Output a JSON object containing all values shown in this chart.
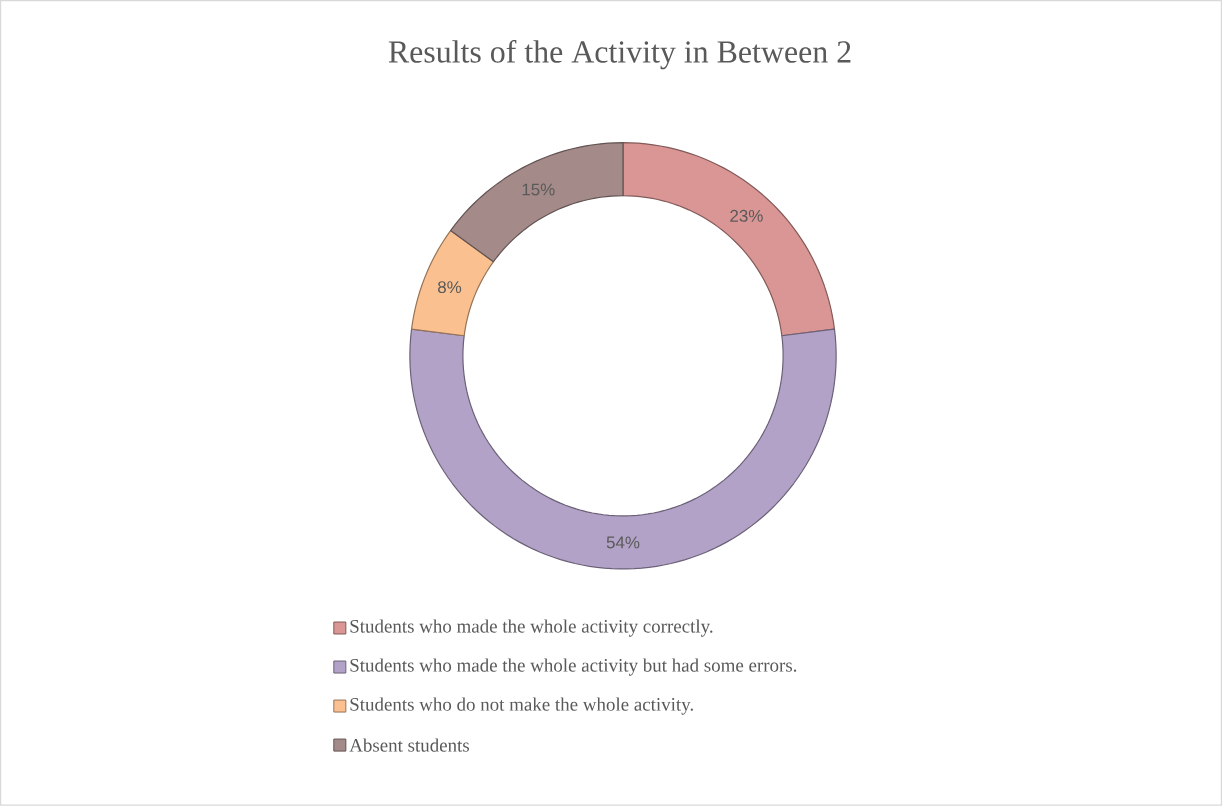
{
  "chart_data": {
    "type": "donut",
    "title": "Results of the Activity in Between 2",
    "categories": [
      "Students who made the whole activity correctly.",
      "Students who made the whole activity but had some errors.",
      "Students who do not make the whole activity.",
      "Absent students"
    ],
    "values": [
      23,
      54,
      8,
      15
    ],
    "value_labels": [
      "23%",
      "54%",
      "8%",
      "15%"
    ],
    "colors": [
      "#d99694",
      "#b3a2c7",
      "#fac090",
      "#a48a88"
    ],
    "legend": "bottom"
  }
}
